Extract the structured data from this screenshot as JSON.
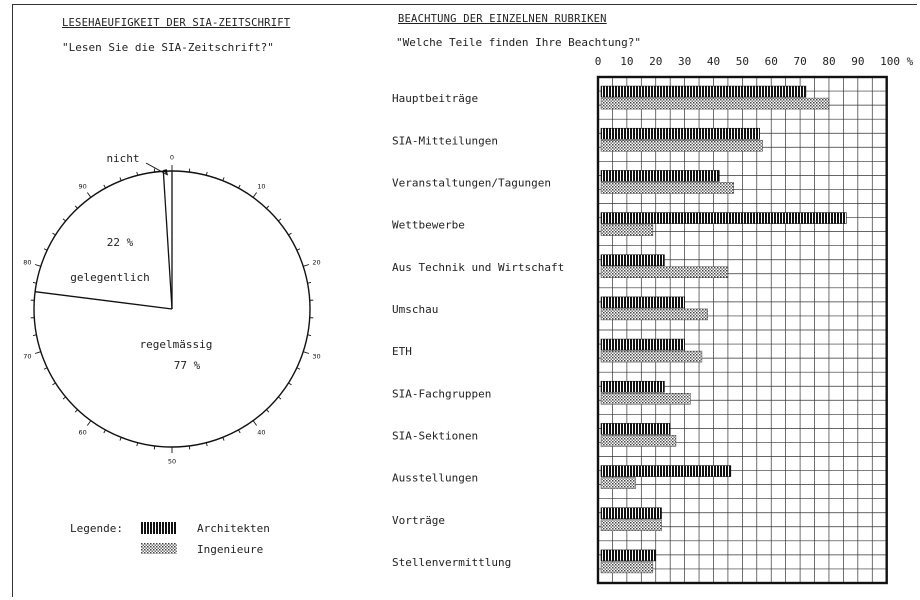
{
  "left_panel": {
    "title": "LESEHAEUFIGKEIT DER SIA-ZEITSCHRIFT",
    "question": "\"Lesen Sie die SIA-Zeitschrift?\""
  },
  "right_panel": {
    "title": "BEACHTUNG DER EINZELNEN RUBRIKEN",
    "question": "\"Welche Teile finden Ihre Beachtung?\""
  },
  "legend": {
    "label": "Legende:",
    "architects": "Architekten",
    "engineers": "Ingenieure"
  },
  "chart_data": [
    {
      "type": "pie",
      "title": "LESEHAEUFIGKEIT DER SIA-ZEITSCHRIFT",
      "slices": [
        {
          "label": "regelmässig",
          "value": 77,
          "value_label": "77 %"
        },
        {
          "label": "gelegentlich",
          "value": 22,
          "value_label": "22 %"
        },
        {
          "label": "nicht",
          "value": 1,
          "value_label": ""
        }
      ],
      "scale_ticks": [
        "0",
        "10",
        "20",
        "30",
        "40",
        "50",
        "60",
        "70",
        "80",
        "90"
      ]
    },
    {
      "type": "bar",
      "orientation": "horizontal",
      "title": "BEACHTUNG DER EINZELNEN RUBRIKEN",
      "categories": [
        "Hauptbeiträge",
        "SIA-Mitteilungen",
        "Veranstaltungen/Tagungen",
        "Wettbewerbe",
        "Aus Technik und Wirtschaft",
        "Umschau",
        "ETH",
        "SIA-Fachgruppen",
        "SIA-Sektionen",
        "Ausstellungen",
        "Vorträge",
        "Stellenvermittlung"
      ],
      "series": [
        {
          "name": "Architekten",
          "values": [
            72,
            56,
            42,
            86,
            23,
            30,
            30,
            23,
            25,
            46,
            22,
            20
          ]
        },
        {
          "name": "Ingenieure",
          "values": [
            80,
            57,
            47,
            19,
            45,
            38,
            36,
            32,
            27,
            13,
            22,
            19
          ]
        }
      ],
      "xticks": [
        "0",
        "10",
        "20",
        "30",
        "40",
        "50",
        "60",
        "70",
        "80",
        "90",
        "100 %"
      ],
      "xlim": [
        0,
        100
      ],
      "grid": true
    }
  ]
}
